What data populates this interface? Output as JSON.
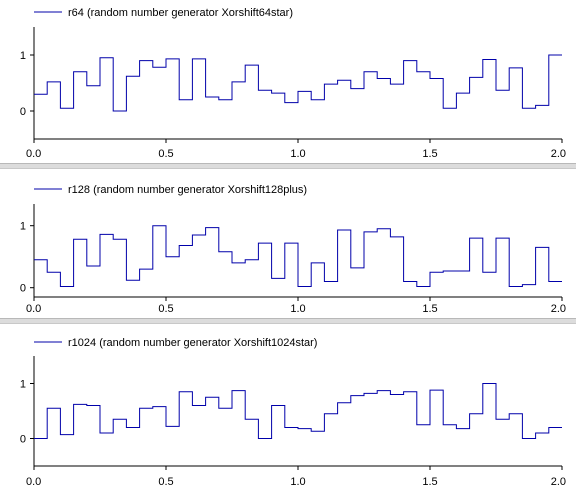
{
  "chart_data": [
    {
      "type": "line",
      "step": true,
      "legend": "r64 (random number generator Xorshift64star)",
      "color": "#0000aa",
      "xlim": [
        0,
        2
      ],
      "ylim": [
        -0.5,
        1.5
      ],
      "x_ticks": [
        "0.0",
        "0.5",
        "1.0",
        "1.5",
        "2.0"
      ],
      "y_ticks": [
        "0",
        "1"
      ],
      "y_tick_values": [
        0,
        1
      ],
      "x_tick_values": [
        0,
        0.5,
        1.0,
        1.5,
        2.0
      ],
      "sample_period": 0.05,
      "values": [
        0.3,
        0.52,
        0.05,
        0.7,
        0.45,
        0.95,
        0.0,
        0.62,
        0.9,
        0.78,
        0.93,
        0.2,
        0.93,
        0.25,
        0.2,
        0.52,
        0.82,
        0.37,
        0.32,
        0.15,
        0.35,
        0.2,
        0.48,
        0.55,
        0.4,
        0.7,
        0.58,
        0.48,
        0.9,
        0.7,
        0.58,
        0.05,
        0.32,
        0.6,
        0.92,
        0.37,
        0.77,
        0.05,
        0.1,
        1.0
      ]
    },
    {
      "type": "line",
      "step": true,
      "legend": "r128 (random number generator Xorshift128plus)",
      "color": "#0000aa",
      "xlim": [
        0,
        2
      ],
      "ylim": [
        -0.15,
        1.35
      ],
      "x_ticks": [
        "0.0",
        "0.5",
        "1.0",
        "1.5",
        "2.0"
      ],
      "y_ticks": [
        "0",
        "1"
      ],
      "y_tick_values": [
        0,
        1
      ],
      "x_tick_values": [
        0,
        0.5,
        1.0,
        1.5,
        2.0
      ],
      "sample_period": 0.05,
      "values": [
        0.45,
        0.25,
        0.02,
        0.78,
        0.35,
        0.86,
        0.78,
        0.12,
        0.3,
        1.0,
        0.5,
        0.68,
        0.85,
        0.97,
        0.58,
        0.4,
        0.45,
        0.72,
        0.15,
        0.72,
        0.02,
        0.4,
        0.1,
        0.93,
        0.32,
        0.9,
        0.95,
        0.82,
        0.1,
        0.02,
        0.25,
        0.27,
        0.27,
        0.8,
        0.25,
        0.8,
        0.02,
        0.05,
        0.65,
        0.1
      ]
    },
    {
      "type": "line",
      "step": true,
      "legend": "r1024 (random number generator Xorshift1024star)",
      "color": "#0000aa",
      "xlim": [
        0,
        2
      ],
      "ylim": [
        -0.5,
        1.5
      ],
      "x_ticks": [
        "0.0",
        "0.5",
        "1.0",
        "1.5",
        "2.0"
      ],
      "y_ticks": [
        "0",
        "1"
      ],
      "y_tick_values": [
        0,
        1
      ],
      "x_tick_values": [
        0,
        0.5,
        1.0,
        1.5,
        2.0
      ],
      "sample_period": 0.05,
      "values": [
        0.0,
        0.55,
        0.07,
        0.62,
        0.6,
        0.1,
        0.35,
        0.2,
        0.55,
        0.58,
        0.22,
        0.85,
        0.6,
        0.75,
        0.55,
        0.87,
        0.35,
        0.0,
        0.6,
        0.2,
        0.18,
        0.13,
        0.45,
        0.65,
        0.78,
        0.82,
        0.87,
        0.8,
        0.85,
        0.25,
        0.88,
        0.25,
        0.18,
        0.45,
        1.0,
        0.35,
        0.45,
        0.0,
        0.1,
        0.2
      ]
    }
  ]
}
